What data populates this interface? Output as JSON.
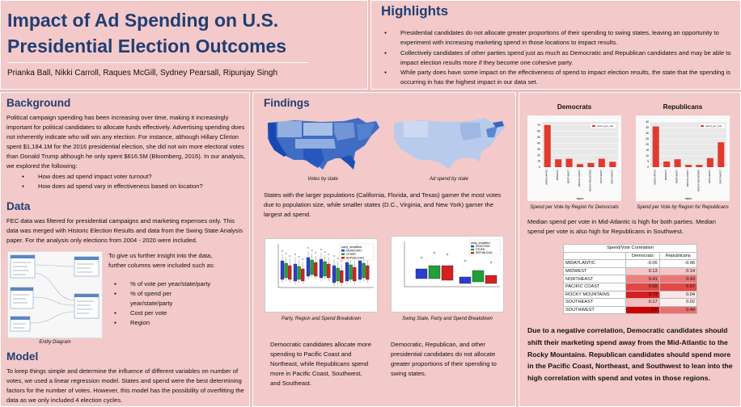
{
  "title": "Impact of Ad Spending on U.S. Presidential Election Outcomes",
  "title_lines": [
    "Impact of Ad Spending on U.S.",
    "Presidential Election Outcomes"
  ],
  "authors": "Prianka Ball, Nikki Carroll, Raques McGill, Sydney Pearsall, Ripunjay Singh",
  "highlights": {
    "heading": "Highlights",
    "items": [
      "Presidential candidates do not allocate greater proportions of their spending to swing states, leaving an opportunity to experiment with increasing marketing spend in those locations to impact results.",
      "Collectively candidates of other parties spend just as much as Democratic and Republican candidates and may be able to impact election results more if they become one cohesive party.",
      "While party does have some impact on the effectiveness of spend to impact election results, the state that the spending is occurring in has the highest impact in our data set."
    ]
  },
  "background": {
    "heading": "Background",
    "text": "Political campaign spending has been increasing over time, making it increasingly important for political candidates to allocate funds effectively. Advertising spending does not inherently indicate who will win any election. For instance, although Hillary Clinton spent $1,184.1M for the 2016 presidential election, she did not win more electoral votes than Donald Trump although he only spent $616.5M (Bloomberg, 2016). In our analysis, we explored the following:",
    "questions": [
      "How does ad spend impact voter turnout?",
      "How does ad spend vary in effectiveness based on location?"
    ]
  },
  "data_section": {
    "heading": "Data",
    "text": "FEC data was filtered for presidential campaigns and marketing expenses only. This data was merged with Historic Election Results and data from the Swing State Analysis paper. For the analysis only elections from 2004 - 2020 were included.",
    "side_text": "To give us further insight into the data, further columns were included such as:",
    "columns": [
      "% of vote per year/state/party",
      "% of spend per year/state/party",
      "Cost per vote",
      "Region"
    ],
    "entity_caption": "Entity Diagram"
  },
  "model": {
    "heading": "Model",
    "text": "To keep things simple and determine the influence of different variables on number of votes, we used a linear regression model. States and spend were the best determining factors for the number of votes. However, this model has the possibility of overfitting the data as we only included 4 election cycles."
  },
  "findings": {
    "heading": "Findings",
    "map_captions": [
      "Votes by state",
      "Ad spend by state"
    ],
    "map_text": "States with the larger populations (California, Florida, and Texas) garner the most votes due to population size, while smaller states (D.C., Virginia, and New York) garner the largest ad spend.",
    "box_captions": [
      "Party,  Region and Spend Breakdown",
      "Swing State, Party and Spend Breakdown"
    ],
    "box_text_left": "Democratic candidates allocate more spending to Pacific Coast and Northeast, while Republicans spend more in Pacific Coast, Southwest, and Southeast.",
    "box_text_right": "Democratic, Republican, and other presidential candidates do not allocate greater proportions of their spending to swing states.",
    "legend_title": "party_simplified",
    "legend": [
      "DEMOCRAT",
      "OTHER",
      "REPUBLICAN"
    ],
    "bar_legend": "spend_per_vote"
  },
  "region_charts": {
    "dem_title": "Democrats",
    "rep_title": "Republicans",
    "dem_caption": "Spend per Vote by Region for Democrats",
    "rep_caption": "Spend per Vote by Region for Republicans",
    "median_text": "Median spend per vote in Mid-Atlantic is high for both parties. Median spend per vote is also high for Republicans in Southwest.",
    "xlabel": "region"
  },
  "chart_data": [
    {
      "type": "bar",
      "title": "Democrats",
      "categories": [
        "MIDATLANTIC",
        "MIDWEST",
        "NORTHEAST",
        "PACIFIC COAST",
        "ROCKY MOUNTAINS",
        "SOUTHEAST",
        "SOUTHWEST"
      ],
      "values": [
        70,
        13,
        14,
        5,
        7,
        14,
        9
      ],
      "ylim": [
        0,
        75
      ],
      "xlabel": "region",
      "series_name": "spend_per_vote"
    },
    {
      "type": "bar",
      "title": "Republicans",
      "categories": [
        "MIDATLANTIC",
        "MIDWEST",
        "NORTHEAST",
        "PACIFIC COAST",
        "ROCKY MOUNTAINS",
        "SOUTHEAST",
        "SOUTHWEST"
      ],
      "values": [
        36,
        5,
        7,
        2,
        2,
        8,
        22
      ],
      "ylim": [
        0,
        40
      ],
      "xlabel": "region",
      "series_name": "spend_per_vote"
    }
  ],
  "correlation": {
    "title": "Spend/Vote Correlation",
    "headers": [
      "",
      "Democrats",
      "Republicans"
    ],
    "rows": [
      {
        "region": "MIDATLANTIC",
        "dem": "-0.06",
        "rep": "-0.06",
        "dem_color": "#ffffff",
        "rep_color": "#ffffff"
      },
      {
        "region": "MIDWEST",
        "dem": "0.13",
        "rep": "0.14",
        "dem_color": "#f6c6c6",
        "rep_color": "#f6c6c6"
      },
      {
        "region": "NORTHEAST",
        "dem": "0.41",
        "rep": "0.43",
        "dem_color": "#ee7f7f",
        "rep_color": "#ec7676"
      },
      {
        "region": "PACIFIC COAST",
        "dem": "0.58",
        "rep": "0.57",
        "dem_color": "#e44646",
        "rep_color": "#e44848"
      },
      {
        "region": "ROCKY MOUNTAINS",
        "dem": "0.73",
        "rep": "0.04",
        "dem_color": "#d81e1e",
        "rep_color": "#fbe6e6"
      },
      {
        "region": "SOUTHEAST",
        "dem": "0.17",
        "rep": "0.02",
        "dem_color": "#f5bcbc",
        "rep_color": "#fcefef"
      },
      {
        "region": "SOUTHWEST",
        "dem": "0.8",
        "rep": "0.44",
        "dem_color": "#cc0000",
        "rep_color": "#ea7070"
      }
    ]
  },
  "conclusion": "Due to a negative correlation, Democratic candidates should shift their marketing spend away from the Mid-Atlantic to the Rocky Mountains. Republican candidates should spend more in the Pacific Coast, Northeast, and Southwest to lean into the high correlation with spend and votes in those regions."
}
